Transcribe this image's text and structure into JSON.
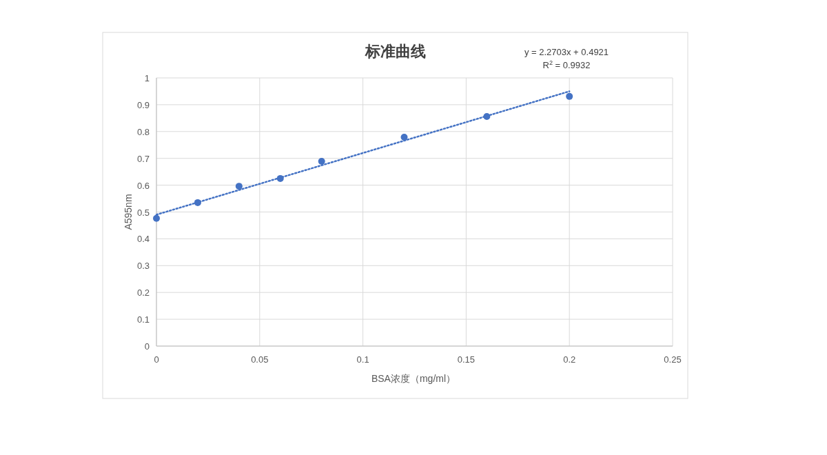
{
  "chart_data": {
    "type": "scatter",
    "title": "标准曲线",
    "xlabel": "BSA浓度（mg/ml）",
    "ylabel": "A595nm",
    "annotations": [
      "y = 2.2703x + 0.4921",
      "R$^{2}$ = 0.9932"
    ],
    "xlim": [
      0,
      0.25
    ],
    "xticks": [
      0,
      0.05,
      0.1,
      0.15,
      0.2,
      0.25
    ],
    "ylim": [
      0,
      1
    ],
    "yticks": [
      0,
      0.1,
      0.2,
      0.3,
      0.4,
      0.5,
      0.6,
      0.7,
      0.8,
      0.9,
      1
    ],
    "grid": true,
    "series": [
      {
        "type": "scatter",
        "color": "#4472c4",
        "marker": "circle",
        "x": [
          0,
          0.02,
          0.04,
          0.06,
          0.08,
          0.12,
          0.16,
          0.2
        ],
        "values": [
          0.476,
          0.535,
          0.596,
          0.625,
          0.689,
          0.779,
          0.856,
          0.931
        ]
      },
      {
        "type": "line",
        "color": "#4472c4",
        "line_style": "dotted",
        "marker": "none",
        "x": [
          0,
          0.2
        ],
        "values": [
          0.49,
          0.95
        ]
      }
    ]
  }
}
